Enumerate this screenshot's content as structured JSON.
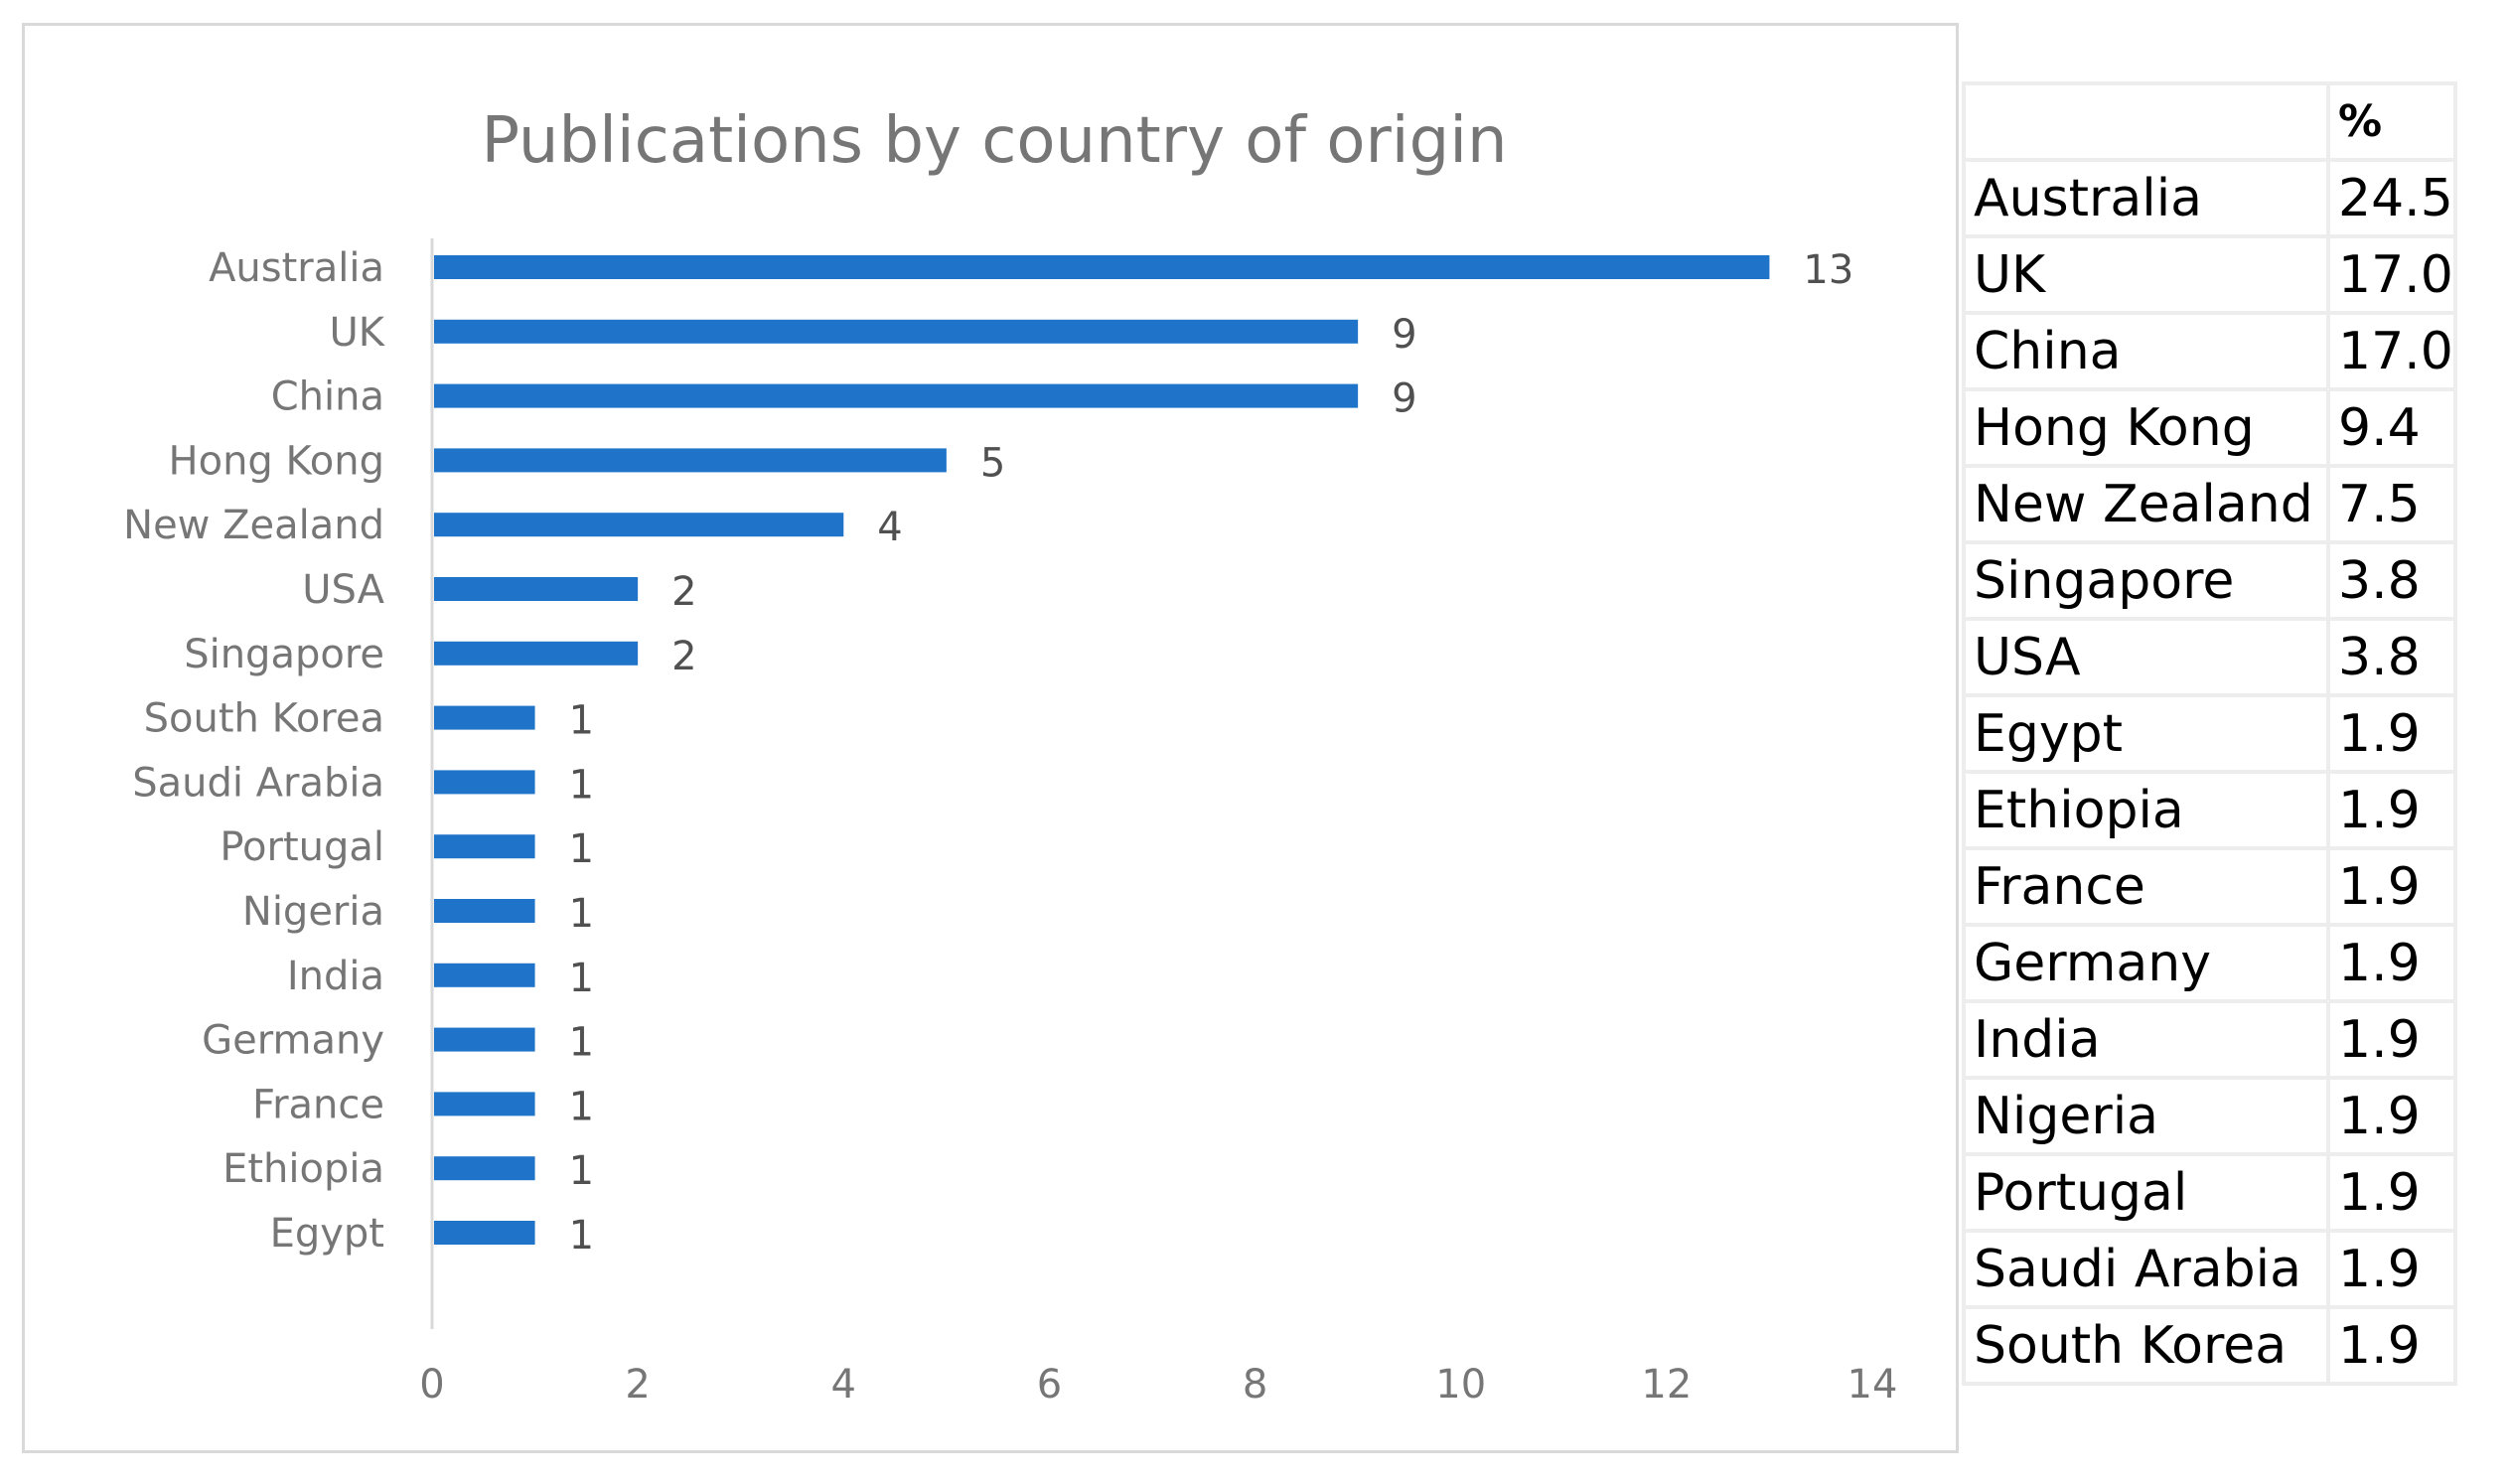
{
  "chart_data": {
    "type": "bar",
    "orientation": "horizontal",
    "title": "Publications by country of origin",
    "categories": [
      "Australia",
      "UK",
      "China",
      "Hong Kong",
      "New Zealand",
      "USA",
      "Singapore",
      "South Korea",
      "Saudi Arabia",
      "Portugal",
      "Nigeria",
      "India",
      "Germany",
      "France",
      "Ethiopia",
      "Egypt"
    ],
    "values": [
      13,
      9,
      9,
      5,
      4,
      2,
      2,
      1,
      1,
      1,
      1,
      1,
      1,
      1,
      1,
      1
    ],
    "data_labels": [
      "13",
      "9",
      "9",
      "5",
      "4",
      "2",
      "2",
      "1",
      "1",
      "1",
      "1",
      "1",
      "1",
      "1",
      "1",
      "1"
    ],
    "xlim": [
      0,
      14
    ],
    "x_ticks": [
      "0",
      "2",
      "4",
      "6",
      "8",
      "10",
      "12",
      "14"
    ],
    "xlabel": "",
    "ylabel": "",
    "bar_color": "#1f74c9",
    "grid": false,
    "legend": "none"
  },
  "table": {
    "header": [
      "",
      "%"
    ],
    "rows": [
      [
        "Australia",
        "24.5"
      ],
      [
        "UK",
        "17.0"
      ],
      [
        "China",
        "17.0"
      ],
      [
        "Hong Kong",
        "9.4"
      ],
      [
        "New Zealand",
        "7.5"
      ],
      [
        "Singapore",
        "3.8"
      ],
      [
        "USA",
        "3.8"
      ],
      [
        "Egypt",
        "1.9"
      ],
      [
        "Ethiopia",
        "1.9"
      ],
      [
        "France",
        "1.9"
      ],
      [
        "Germany",
        "1.9"
      ],
      [
        "India",
        "1.9"
      ],
      [
        "Nigeria",
        "1.9"
      ],
      [
        "Portugal",
        "1.9"
      ],
      [
        "Saudi Arabia",
        "1.9"
      ],
      [
        "South Korea",
        "1.9"
      ]
    ]
  }
}
